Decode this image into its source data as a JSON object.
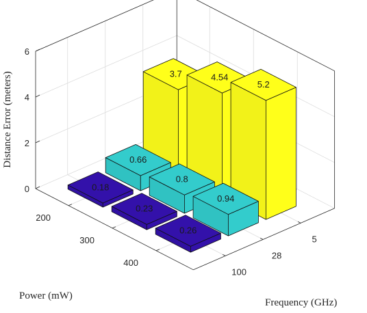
{
  "chart_data": {
    "type": "bar3d",
    "zlabel": "Distance Error (meters)",
    "xlabel": "Frequency (GHz)",
    "ylabel": "Power (mW)",
    "frequency_ticks": [
      "5",
      "28",
      "100"
    ],
    "power_ticks": [
      "200",
      "300",
      "400"
    ],
    "zlim": [
      0,
      6
    ],
    "zticks": [
      "0",
      "2",
      "4",
      "6"
    ],
    "grid": true,
    "series": [
      {
        "frequency": "5",
        "color": "#ffff1a",
        "values": [
          3.7,
          4.54,
          5.2
        ],
        "labels": [
          "3.7",
          "4.54",
          "5.2"
        ]
      },
      {
        "frequency": "28",
        "color": "#33cccc",
        "values": [
          0.66,
          0.8,
          0.94
        ],
        "labels": [
          "0.66",
          "0.8",
          "0.94"
        ]
      },
      {
        "frequency": "100",
        "color": "#3311aa",
        "values": [
          0.18,
          0.23,
          0.26
        ],
        "labels": [
          "0.18",
          "0.23",
          "0.26"
        ]
      }
    ]
  }
}
